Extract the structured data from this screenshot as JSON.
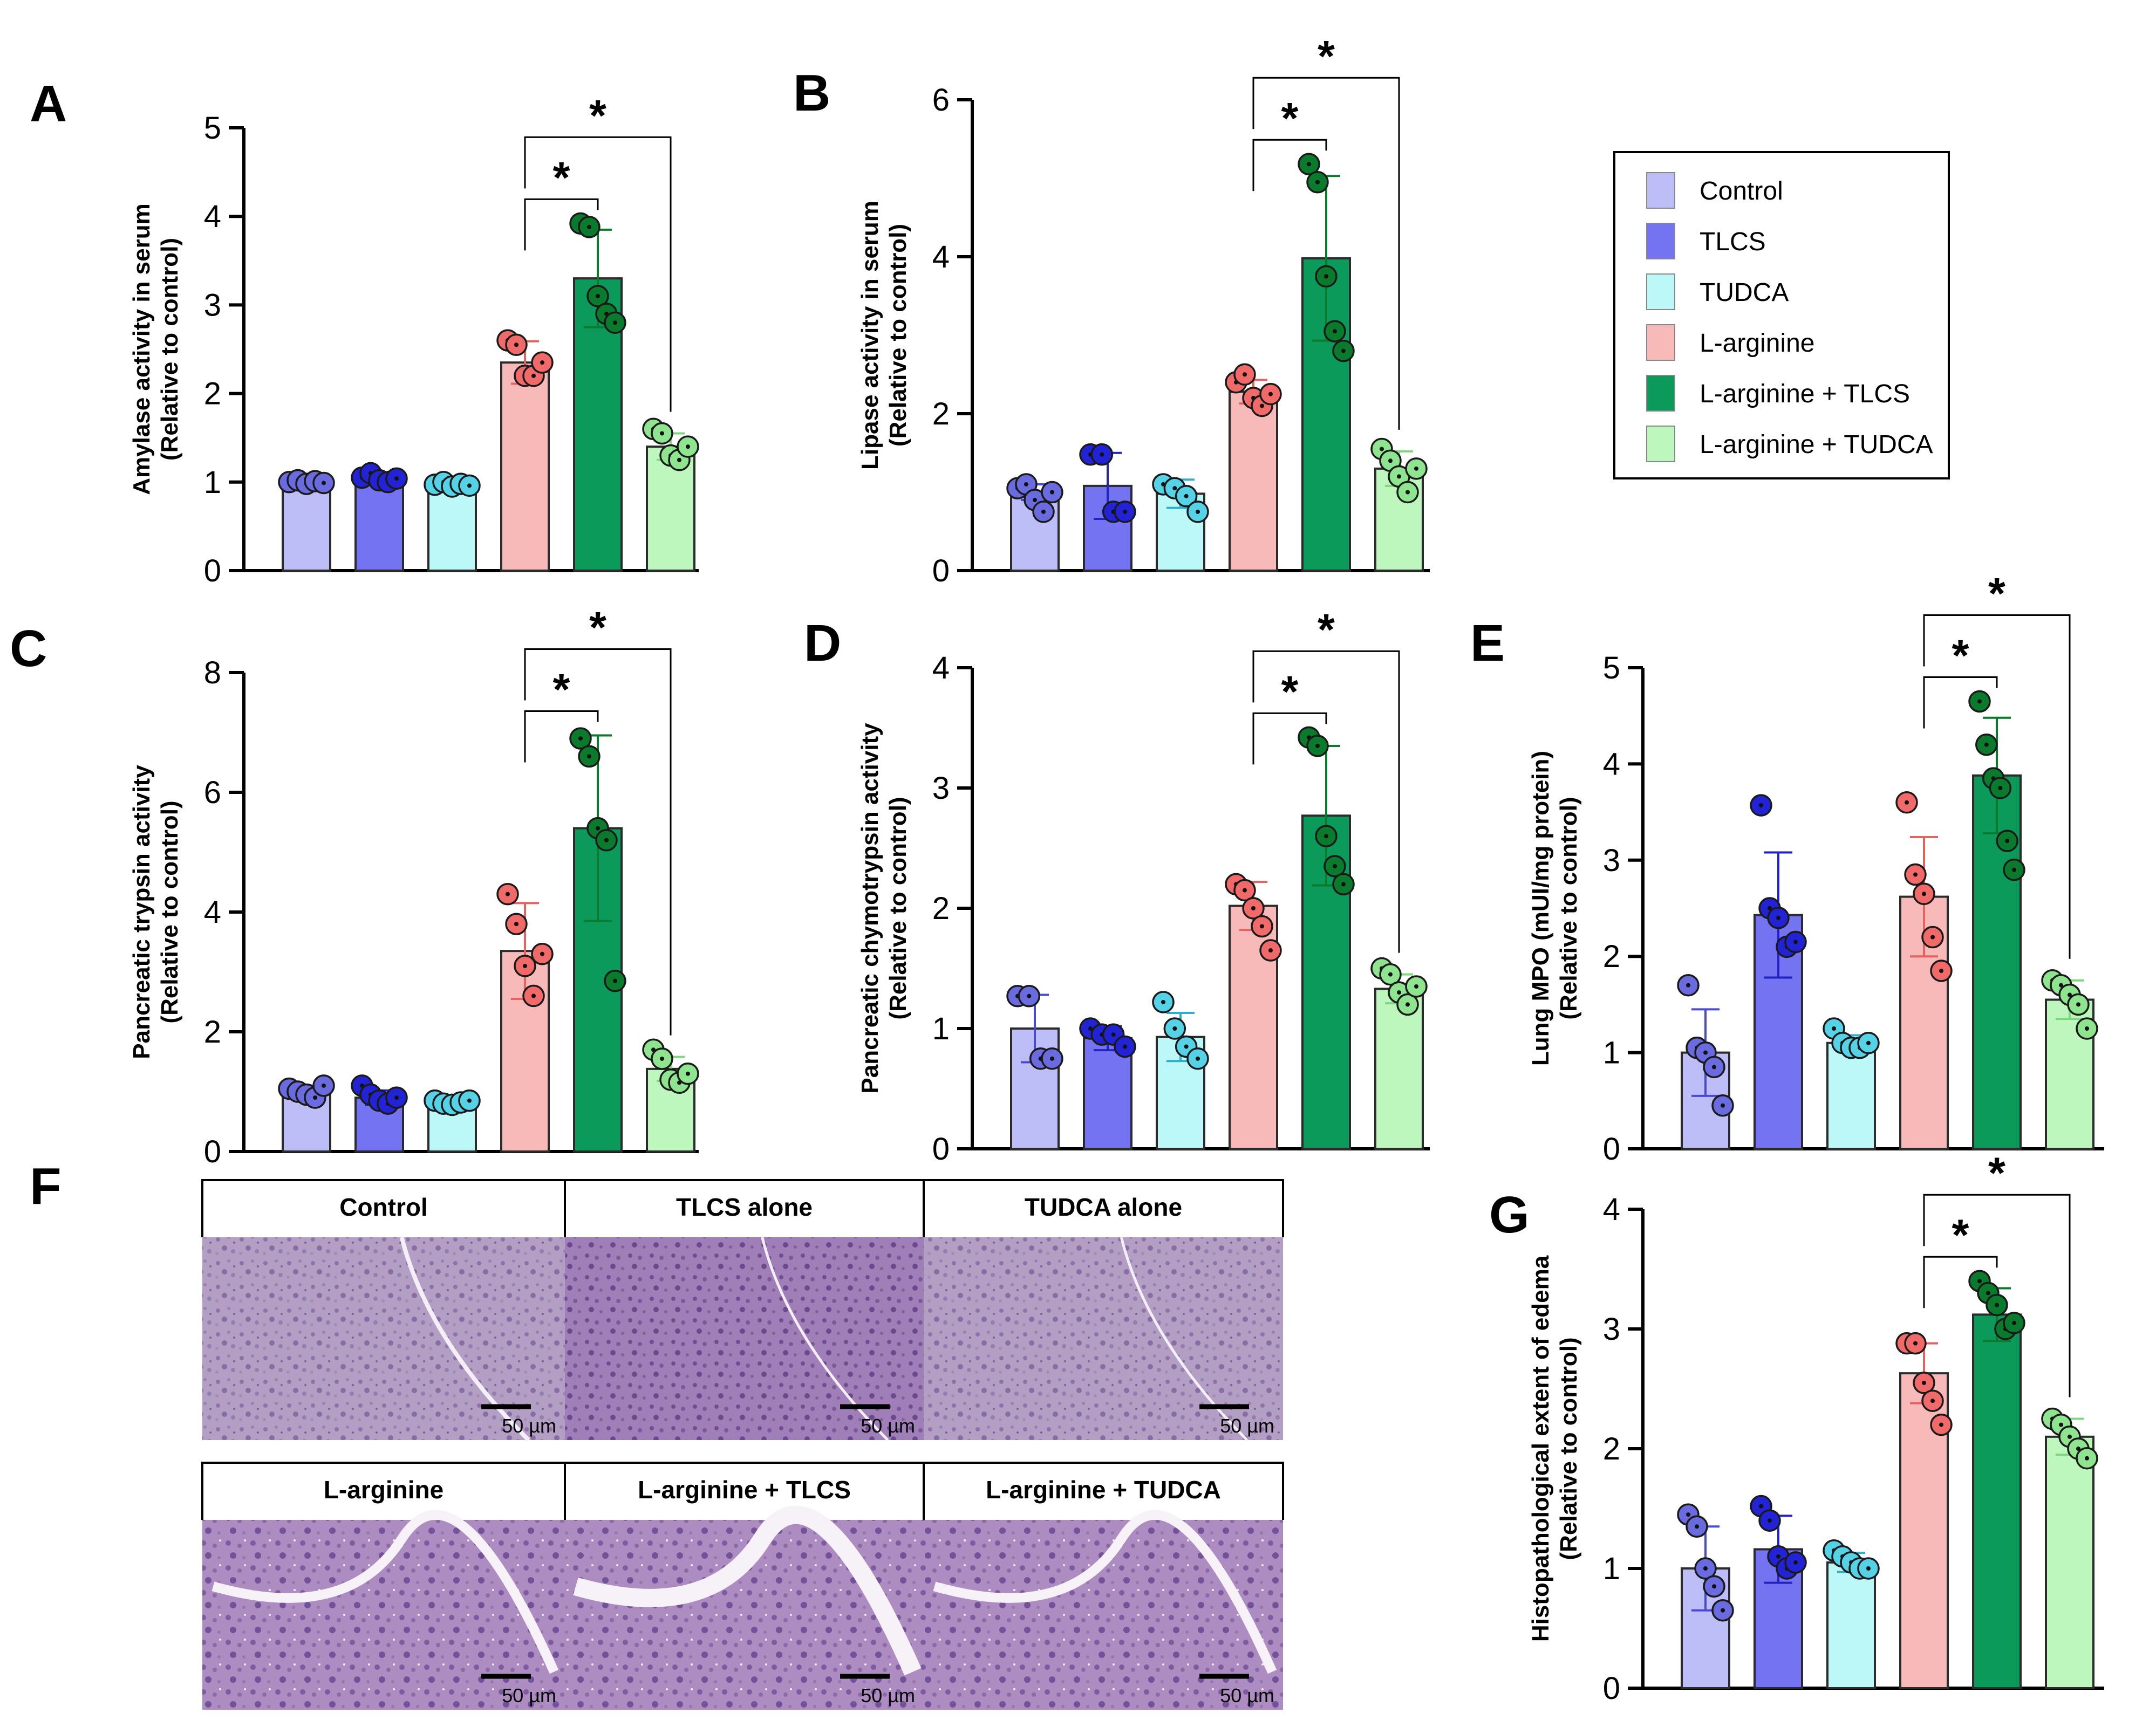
{
  "figure": {
    "colors": {
      "Control": "#bdbdf8",
      "TLCS": "#7474f2",
      "TUDCA": "#bdf8f8",
      "L-arginine": "#f8b9b9",
      "L-arginine + TLCS": "#0b9a5a",
      "L-arginine + TUDCA": "#bdf7bd"
    },
    "dot_colors": {
      "Control": "#6b6be0",
      "TLCS": "#2323d6",
      "TUDCA": "#56d2e6",
      "L-arginine": "#f06a6a",
      "L-arginine + TLCS": "#0a7a2c",
      "L-arginine + TUDCA": "#8fe48f"
    },
    "error_colors": {
      "Control": "#4a4ad0",
      "TLCS": "#2323c4",
      "TUDCA": "#2cb0c8",
      "L-arginine": "#e86060",
      "L-arginine + TLCS": "#0a7a2c",
      "L-arginine + TUDCA": "#7ed87e"
    }
  },
  "legend": {
    "items": [
      "Control",
      "TLCS",
      "TUDCA",
      "L-arginine",
      "L-arginine + TLCS",
      "L-arginine + TUDCA"
    ]
  },
  "chart_data": [
    {
      "panel": "A",
      "type": "bar",
      "ylabel_line1": "Amylase activity in serum",
      "ylabel_line2": "(Relative to control)",
      "ylim": [
        0,
        5
      ],
      "yticks": [
        0,
        1,
        2,
        3,
        4,
        5
      ],
      "categories": [
        "Control",
        "TLCS",
        "TUDCA",
        "L-arginine",
        "L-arginine + TLCS",
        "L-arginine + TUDCA"
      ],
      "values": [
        1.0,
        1.04,
        0.97,
        2.35,
        3.3,
        1.4
      ],
      "errors": [
        0.03,
        0.05,
        0.05,
        0.24,
        0.55,
        0.15
      ],
      "points": [
        [
          1.0,
          1.02,
          0.98,
          1.01,
          0.99
        ],
        [
          1.05,
          1.1,
          1.02,
          1.0,
          1.04
        ],
        [
          0.97,
          1.0,
          0.95,
          0.98,
          0.96
        ],
        [
          2.6,
          2.55,
          2.2,
          2.2,
          2.35
        ],
        [
          3.92,
          3.88,
          3.1,
          2.9,
          2.8
        ],
        [
          1.6,
          1.55,
          1.3,
          1.25,
          1.4
        ]
      ],
      "significance": [
        {
          "from": 3,
          "to": 4,
          "label": "*"
        },
        {
          "from": 3,
          "to": 5,
          "label": "*"
        }
      ]
    },
    {
      "panel": "B",
      "type": "bar",
      "ylabel_line1": "Lipase activity in serum",
      "ylabel_line2": "(Relative to control)",
      "ylim": [
        0,
        6
      ],
      "yticks": [
        0,
        2,
        4,
        6
      ],
      "categories": [
        "Control",
        "TLCS",
        "TUDCA",
        "L-arginine",
        "L-arginine + TLCS",
        "L-arginine + TUDCA"
      ],
      "values": [
        1.0,
        1.08,
        0.98,
        2.28,
        3.98,
        1.3
      ],
      "errors": [
        0.1,
        0.42,
        0.18,
        0.15,
        1.05,
        0.22
      ],
      "points": [
        [
          1.05,
          1.1,
          0.9,
          0.75,
          1.0
        ],
        [
          1.48,
          1.48,
          0.75,
          0.75
        ],
        [
          1.1,
          1.05,
          0.95,
          0.75
        ],
        [
          2.4,
          2.5,
          2.2,
          2.1,
          2.25
        ],
        [
          5.18,
          4.95,
          3.75,
          3.05,
          2.8
        ],
        [
          1.55,
          1.4,
          1.2,
          1.0,
          1.3
        ]
      ],
      "significance": [
        {
          "from": 3,
          "to": 4,
          "label": "*"
        },
        {
          "from": 3,
          "to": 5,
          "label": "*"
        }
      ]
    },
    {
      "panel": "C",
      "type": "bar",
      "ylabel_line1": "Pancreatic trypsin activity",
      "ylabel_line2": "(Relative to control)",
      "ylim": [
        0,
        8
      ],
      "yticks": [
        0,
        2,
        4,
        6,
        8
      ],
      "categories": [
        "Control",
        "TLCS",
        "TUDCA",
        "L-arginine",
        "L-arginine + TLCS",
        "L-arginine + TUDCA"
      ],
      "values": [
        1.0,
        0.9,
        0.82,
        3.35,
        5.4,
        1.38
      ],
      "errors": [
        0.08,
        0.12,
        0.08,
        0.8,
        1.55,
        0.2
      ],
      "points": [
        [
          1.05,
          1.0,
          0.95,
          0.9,
          1.1
        ],
        [
          1.1,
          0.95,
          0.85,
          0.8,
          0.9
        ],
        [
          0.85,
          0.8,
          0.78,
          0.82,
          0.85
        ],
        [
          4.3,
          3.8,
          3.1,
          2.6,
          3.3
        ],
        [
          6.9,
          6.6,
          5.4,
          5.2,
          2.85
        ],
        [
          1.7,
          1.55,
          1.2,
          1.15,
          1.3
        ]
      ],
      "significance": [
        {
          "from": 3,
          "to": 4,
          "label": "*"
        },
        {
          "from": 3,
          "to": 5,
          "label": "*"
        }
      ]
    },
    {
      "panel": "D",
      "type": "bar",
      "ylabel_line1": "Pancreatic chymotrypsin activity",
      "ylabel_line2": "(Relative to control)",
      "ylim": [
        0,
        4
      ],
      "yticks": [
        0,
        1,
        2,
        3,
        4
      ],
      "categories": [
        "Control",
        "TLCS",
        "TUDCA",
        "L-arginine",
        "L-arginine + TLCS",
        "L-arginine + TUDCA"
      ],
      "values": [
        1.0,
        0.92,
        0.93,
        2.02,
        2.77,
        1.33
      ],
      "errors": [
        0.28,
        0.1,
        0.2,
        0.2,
        0.58,
        0.12
      ],
      "points": [
        [
          1.27,
          1.27,
          0.75,
          0.75
        ],
        [
          1.0,
          0.95,
          0.95,
          0.85
        ],
        [
          1.22,
          1.0,
          0.85,
          0.75
        ],
        [
          2.2,
          2.15,
          2.0,
          1.85,
          1.65
        ],
        [
          3.42,
          3.35,
          2.6,
          2.35,
          2.2
        ],
        [
          1.5,
          1.45,
          1.3,
          1.2,
          1.35
        ]
      ],
      "significance": [
        {
          "from": 3,
          "to": 4,
          "label": "*"
        },
        {
          "from": 3,
          "to": 5,
          "label": "*"
        }
      ]
    },
    {
      "panel": "E",
      "type": "bar",
      "ylabel_line1": "Lung MPO (mUI/mg protein)",
      "ylabel_line2": "(Relative to control)",
      "ylim": [
        0,
        5
      ],
      "yticks": [
        0,
        1,
        2,
        3,
        4,
        5
      ],
      "categories": [
        "Control",
        "TLCS",
        "TUDCA",
        "L-arginine",
        "L-arginine + TLCS",
        "L-arginine + TUDCA"
      ],
      "values": [
        1.0,
        2.43,
        1.1,
        2.62,
        3.88,
        1.55
      ],
      "errors": [
        0.45,
        0.65,
        0.08,
        0.62,
        0.6,
        0.2
      ],
      "points": [
        [
          1.7,
          1.05,
          1.0,
          0.85,
          0.45
        ],
        [
          3.57,
          2.5,
          2.4,
          2.1,
          2.15
        ],
        [
          1.25,
          1.1,
          1.05,
          1.05,
          1.1
        ],
        [
          3.6,
          2.85,
          2.65,
          2.2,
          1.85
        ],
        [
          4.65,
          4.2,
          3.85,
          3.75,
          3.2,
          2.9
        ],
        [
          1.75,
          1.7,
          1.6,
          1.5,
          1.25
        ]
      ],
      "significance": [
        {
          "from": 3,
          "to": 4,
          "label": "*"
        },
        {
          "from": 3,
          "to": 5,
          "label": "*"
        }
      ]
    },
    {
      "panel": "G",
      "type": "bar",
      "ylabel_line1": "Histopathological extent of edema",
      "ylabel_line2": "(Relative to control)",
      "ylim": [
        0,
        4
      ],
      "yticks": [
        0,
        1,
        2,
        3,
        4
      ],
      "categories": [
        "Control",
        "TLCS",
        "TUDCA",
        "L-arginine",
        "L-arginine + TLCS",
        "L-arginine + TUDCA"
      ],
      "values": [
        1.0,
        1.16,
        1.05,
        2.63,
        3.12,
        2.1
      ],
      "errors": [
        0.35,
        0.28,
        0.08,
        0.25,
        0.22,
        0.15
      ],
      "points": [
        [
          1.45,
          1.35,
          1.0,
          0.85,
          0.65
        ],
        [
          1.52,
          1.4,
          1.1,
          1.0,
          1.05
        ],
        [
          1.15,
          1.1,
          1.05,
          1.0,
          1.0
        ],
        [
          2.88,
          2.88,
          2.55,
          2.4,
          2.2
        ],
        [
          3.4,
          3.3,
          3.2,
          3.0,
          3.05
        ],
        [
          2.25,
          2.2,
          2.1,
          2.0,
          1.92
        ]
      ],
      "significance": [
        {
          "from": 3,
          "to": 4,
          "label": "*"
        },
        {
          "from": 3,
          "to": 5,
          "label": "*"
        }
      ]
    }
  ],
  "histology": {
    "panel_letter": "F",
    "headers": [
      "Control",
      "TLCS alone",
      "TUDCA alone",
      "L-arginine",
      "L-arginine + TLCS",
      "L-arginine + TUDCA"
    ],
    "scale_bar_label": "50 µm"
  }
}
